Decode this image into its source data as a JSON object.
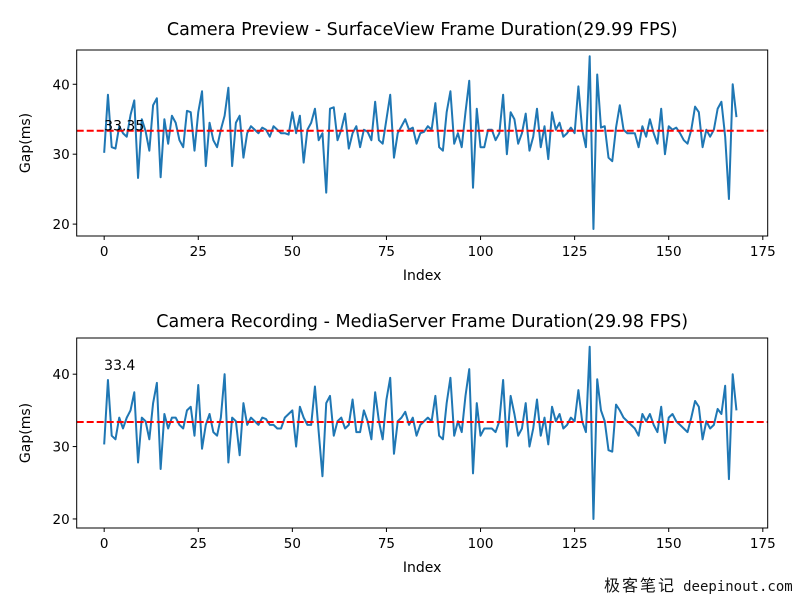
{
  "chart_data": [
    {
      "type": "line",
      "title": "Camera Preview - SurfaceView Frame Duration(29.99 FPS)",
      "xlabel": "Index",
      "ylabel": "Gap(ms)",
      "xlim": [
        -7.3,
        176.3
      ],
      "ylim": [
        18.3,
        44.9
      ],
      "xticks": [
        0,
        25,
        50,
        75,
        100,
        125,
        150,
        175
      ],
      "yticks": [
        20,
        30,
        40
      ],
      "series_color": "#1f77b4",
      "mean_line": {
        "value": 33.35,
        "color": "#ff0000",
        "style": "dashed"
      },
      "annotation": {
        "text": "33.35",
        "x": 0,
        "y": 33.4
      },
      "values": [
        30.2,
        38.5,
        31,
        30.8,
        34,
        33,
        32.5,
        35.6,
        37.7,
        26.6,
        35,
        33.3,
        30.5,
        37,
        38,
        26.7,
        35,
        31.5,
        35.5,
        34.5,
        32,
        31,
        36.2,
        36,
        30.5,
        36,
        39,
        28.3,
        34.5,
        32,
        31,
        33.5,
        35.5,
        39.5,
        28.3,
        34.5,
        35.5,
        29.5,
        33,
        34,
        33.5,
        33,
        33.8,
        33.5,
        32.5,
        34,
        33.5,
        33,
        33,
        32.8,
        36,
        33,
        35.5,
        28.8,
        33.5,
        34.5,
        36.5,
        32,
        33,
        24.5,
        36.5,
        36.7,
        32,
        33.5,
        35.8,
        30.8,
        33,
        34,
        31,
        33.5,
        33.2,
        32,
        37.5,
        32,
        31.5,
        35,
        38.5,
        29.5,
        33,
        34,
        35,
        33.5,
        33.8,
        31.5,
        33,
        33.2,
        34,
        33.5,
        37.3,
        31,
        30.5,
        36,
        39,
        31.5,
        33,
        31,
        36,
        40.5,
        25.2,
        36.5,
        31,
        31,
        33.5,
        33.5,
        32,
        33,
        38.5,
        30,
        36,
        35,
        31.5,
        33,
        35.8,
        30.5,
        32.5,
        36.5,
        31,
        34,
        29.3,
        36,
        33.5,
        34.5,
        32.5,
        33,
        33.8,
        33,
        39.7,
        33.5,
        31,
        44,
        19.3,
        41.4,
        33.8,
        34,
        29.5,
        29,
        33.8,
        37,
        33.5,
        33,
        33,
        33,
        31,
        34,
        32.5,
        35,
        33,
        31.5,
        36.5,
        30,
        34,
        33.5,
        33.8,
        33,
        32,
        31.5,
        33.5,
        36.8,
        36,
        31,
        33.5,
        32.5,
        33.5,
        36.5,
        37.5,
        32.5,
        23.6,
        40,
        35.3
      ]
    },
    {
      "type": "line",
      "title": "Camera Recording - MediaServer Frame Duration(29.98 FPS)",
      "xlabel": "Index",
      "ylabel": "Gap(ms)",
      "xlim": [
        -7.3,
        176.3
      ],
      "ylim": [
        18.75,
        45
      ],
      "xticks": [
        0,
        25,
        50,
        75,
        100,
        125,
        150,
        175
      ],
      "yticks": [
        20,
        30,
        40
      ],
      "series_color": "#1f77b4",
      "mean_line": {
        "value": 33.4,
        "color": "#ff0000",
        "style": "dashed"
      },
      "annotation": {
        "text": "33.4",
        "x": 0,
        "y": 40.6
      },
      "values": [
        30.3,
        39.2,
        31.5,
        31,
        34,
        32.5,
        34,
        35,
        37.5,
        27.8,
        34,
        33.5,
        31,
        36,
        38.8,
        26.9,
        34.5,
        32.5,
        34,
        34,
        33,
        32.5,
        35,
        35.5,
        31.5,
        38.5,
        29.7,
        33,
        34.5,
        32,
        31.5,
        34,
        40,
        27.8,
        34,
        33.5,
        28.8,
        36,
        33,
        34,
        33.5,
        33,
        34,
        33.8,
        33,
        33,
        32.5,
        32.5,
        34,
        34.5,
        35,
        30,
        35.5,
        34,
        33,
        33,
        38.3,
        32,
        25.9,
        36,
        37,
        31.5,
        33.5,
        34,
        32.5,
        33,
        36.5,
        32,
        32,
        35,
        33.5,
        31,
        37.5,
        33.5,
        31,
        36.5,
        39.5,
        29,
        33.5,
        34,
        34.8,
        33,
        34,
        31.5,
        33,
        33.5,
        34,
        33.5,
        37,
        31.5,
        31,
        36,
        39.5,
        31.5,
        33.5,
        32,
        37,
        40.7,
        26.3,
        36,
        31.5,
        32.5,
        32.5,
        32.5,
        32,
        33.5,
        39.2,
        30,
        37,
        34.5,
        31.5,
        32.5,
        36,
        30,
        32.5,
        36.5,
        31.5,
        34,
        30.3,
        35.5,
        33.5,
        34.5,
        32.5,
        33,
        34,
        33.5,
        37.8,
        33.5,
        32,
        43.8,
        20,
        39.3,
        35,
        33.5,
        29.5,
        29.3,
        35.8,
        35,
        34,
        33.5,
        33,
        32.5,
        31.5,
        34.5,
        33.5,
        34.5,
        33,
        32,
        35.5,
        30.5,
        34,
        34.5,
        33.5,
        33,
        32.5,
        32,
        34,
        36.3,
        35.5,
        31,
        33.5,
        32.5,
        33,
        35.2,
        34.5,
        38.4,
        25.5,
        40,
        35
      ]
    }
  ],
  "watermark": {
    "cn": "极客笔记",
    "site": "deepinout.com"
  }
}
